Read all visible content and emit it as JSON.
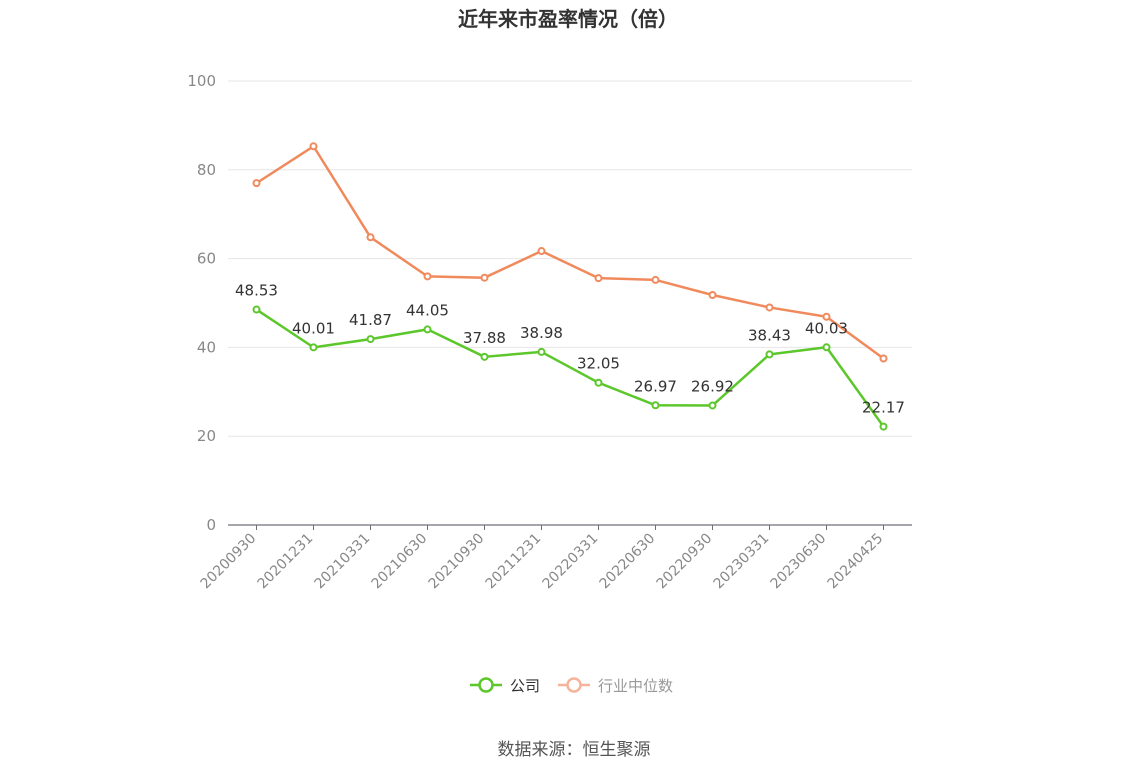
{
  "chart_data": {
    "type": "line",
    "title": "近年来市盈率情况（倍）",
    "x": [
      "20200930",
      "20201231",
      "20210331",
      "20210630",
      "20210930",
      "20211231",
      "20220331",
      "20220630",
      "20220930",
      "20230331",
      "20230630",
      "20240425"
    ],
    "series": [
      {
        "name": "公司",
        "values": [
          48.53,
          40.01,
          41.87,
          44.05,
          37.88,
          38.98,
          32.05,
          26.97,
          26.92,
          38.43,
          40.03,
          22.17
        ],
        "labels": [
          "48.53",
          "40.01",
          "41.87",
          "44.05",
          "37.88",
          "38.98",
          "32.05",
          "26.97",
          "26.92",
          "38.43",
          "40.03",
          "22.17"
        ],
        "color": "#5cc72b",
        "show_labels": true
      },
      {
        "name": "行业中位数",
        "values": [
          77.0,
          85.3,
          64.8,
          56.0,
          55.7,
          61.7,
          55.6,
          55.2,
          51.8,
          49.0,
          46.9,
          37.5
        ],
        "color": "#f08a5d",
        "show_labels": false
      }
    ],
    "ylim": [
      0,
      100
    ],
    "yticks": [
      "0",
      "20",
      "40",
      "60",
      "80",
      "100"
    ],
    "grid": true,
    "legend": "bottom-center"
  },
  "legend": {
    "items": [
      {
        "label": "公司",
        "active": true,
        "color": "#5cc72b"
      },
      {
        "label": "行业中位数",
        "active": false,
        "color": "#f5b49a"
      }
    ]
  },
  "source": "数据来源：恒生聚源"
}
